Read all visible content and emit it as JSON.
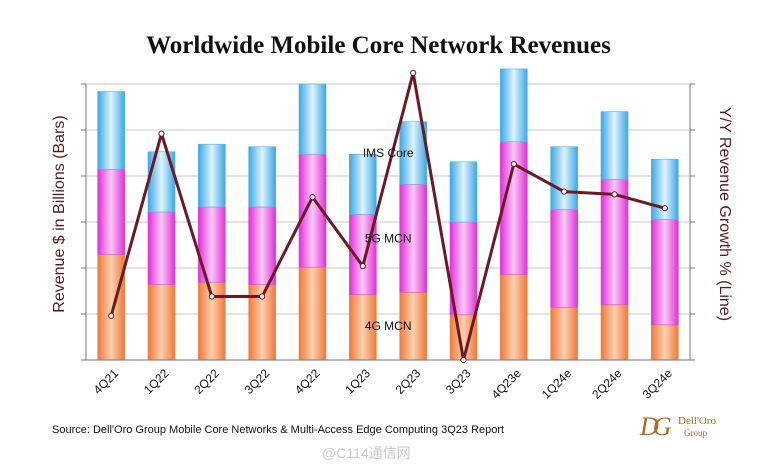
{
  "chart_data": {
    "type": "bar",
    "title": "Worldwide Mobile Core Network Revenues",
    "ylabel": "Revenue $ in Billions (Bars)",
    "y2label": "Y/Y Revenue Growth % (Line)",
    "categories": [
      "4Q21",
      "1Q22",
      "2Q22",
      "3Q22",
      "4Q22",
      "1Q23",
      "2Q23",
      "3Q23",
      "4Q23e",
      "1Q24e",
      "2Q24e",
      "3Q24e"
    ],
    "stacked": true,
    "ylim": [
      0,
      5.5
    ],
    "y2lim": [
      0,
      10
    ],
    "grid": true,
    "series": [
      {
        "name": "4G MCN",
        "color": "#f08a4b",
        "values": [
          2.1,
          1.5,
          1.55,
          1.5,
          1.85,
          1.3,
          1.35,
          0.9,
          1.7,
          1.05,
          1.1,
          0.7
        ]
      },
      {
        "name": "5G MCN",
        "color": "#e840e0",
        "values": [
          1.7,
          1.45,
          1.5,
          1.55,
          2.25,
          1.6,
          2.15,
          1.85,
          2.65,
          1.95,
          2.5,
          2.1
        ]
      },
      {
        "name": "IMS Core",
        "color": "#4fb4ea",
        "values": [
          1.55,
          1.2,
          1.25,
          1.2,
          1.4,
          1.2,
          1.25,
          1.2,
          1.45,
          1.25,
          1.35,
          1.2
        ]
      }
    ],
    "line": {
      "name": "Y/Y Revenue Growth",
      "color": "#6b1a24",
      "values": [
        1.6,
        8.2,
        2.3,
        2.3,
        5.9,
        3.4,
        10.4,
        0.0,
        7.1,
        6.1,
        6.0,
        5.5
      ]
    },
    "series_labels": [
      {
        "series": "IMS Core",
        "category": "2Q23",
        "text": "IMS Core"
      },
      {
        "series": "5G MCN",
        "category": "2Q23",
        "text": "5G MCN"
      },
      {
        "series": "4G MCN",
        "category": "2Q23",
        "text": "4G MCN"
      }
    ]
  },
  "source": "Source: Dell'Oro Group Mobile Core Networks & Multi-Access Edge Computing 3Q23 Report",
  "logo": {
    "mark": "DG",
    "name_line1": "Dell'Oro",
    "name_line2": "Group"
  },
  "watermark": "@C114通信网"
}
